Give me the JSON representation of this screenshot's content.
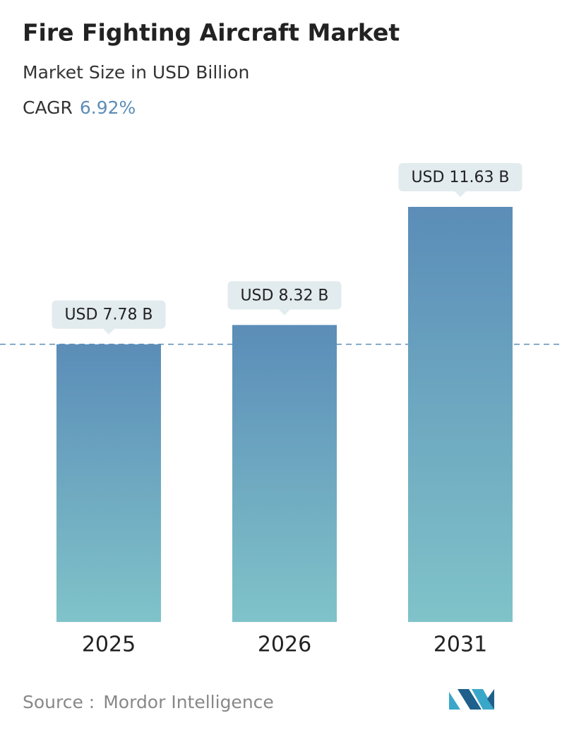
{
  "chart_data": {
    "type": "bar",
    "title": "Fire Fighting Aircraft Market",
    "subtitle": "Market Size in USD Billion",
    "cagr_label": "CAGR",
    "cagr_value": "6.92%",
    "categories": [
      "2025",
      "2026",
      "2031"
    ],
    "values": [
      7.78,
      8.32,
      11.63
    ],
    "value_labels": [
      "USD 7.78 B",
      "USD 8.32 B",
      "USD 11.63 B"
    ],
    "color_top": "#5b8db8",
    "color_bottom": "#80c3c9",
    "source_label": "Source :",
    "source": "Mordor Intelligence"
  }
}
